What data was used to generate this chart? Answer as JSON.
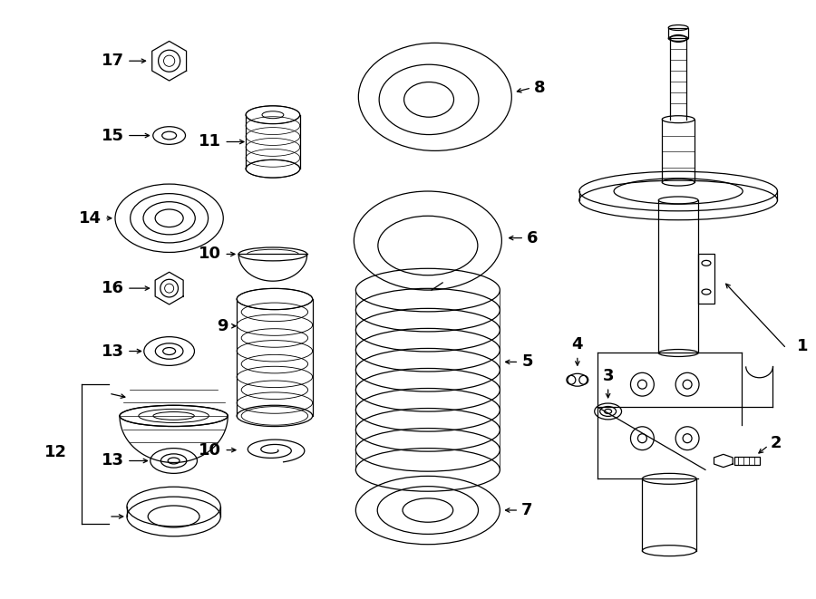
{
  "background_color": "#ffffff",
  "line_color": "#000000",
  "fig_width": 9.0,
  "fig_height": 6.61,
  "dpi": 100,
  "lw": 0.9,
  "fs": 13
}
